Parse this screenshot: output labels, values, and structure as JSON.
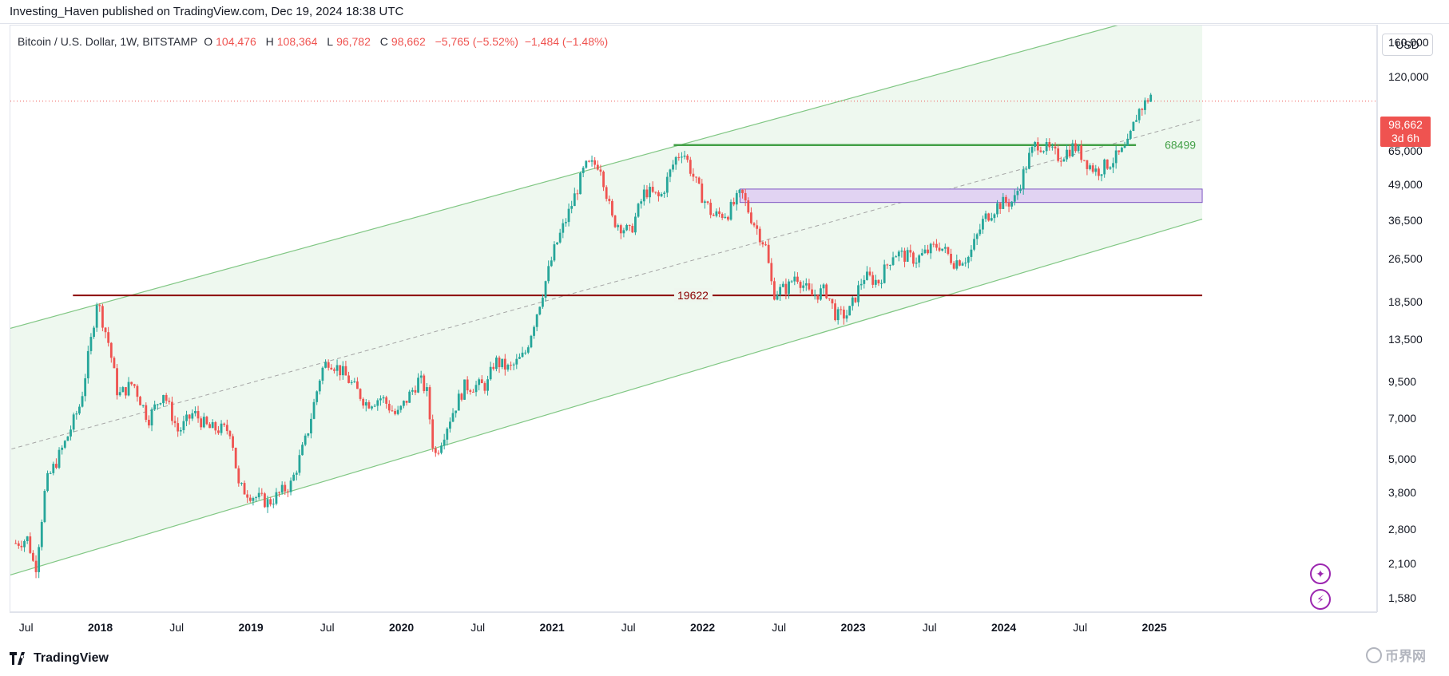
{
  "header": {
    "text": "Investing_Haven published on TradingView.com, Dec 19, 2024 18:38 UTC"
  },
  "symbol": {
    "name": "Bitcoin / U.S. Dollar, 1W, BITSTAMP",
    "o_label": "O",
    "o": "104,476",
    "h_label": "H",
    "h": "108,364",
    "l_label": "L",
    "l": "96,782",
    "c_label": "C",
    "c": "98,662",
    "change": "−5,765 (−5.52%)",
    "change2": "−1,484 (−1.48%)"
  },
  "currency": "USD",
  "last_price": {
    "value": "98,662",
    "countdown": "3d 6h"
  },
  "footer": {
    "brand": "TradingView",
    "watermark": "币界网"
  },
  "colors": {
    "up": "#26a69a",
    "down": "#ef5350",
    "channel_line": "#81c784",
    "channel_fill": "#e8f5e9",
    "support_line": "#8b0000",
    "resistance_line": "#43a047",
    "zone_fill": "#e1d3f2",
    "zone_border": "#7e57c2"
  },
  "chart_data": {
    "type": "candlestick",
    "title": "Bitcoin / U.S. Dollar, 1W, BITSTAMP",
    "scale": "log",
    "ylim": [
      1400,
      185000
    ],
    "x_ticks": [
      "Jul",
      "2018",
      "Jul",
      "2019",
      "Jul",
      "2020",
      "Jul",
      "2021",
      "Jul",
      "2022",
      "Jul",
      "2023",
      "Jul",
      "2024",
      "Jul",
      "2025"
    ],
    "x_tick_dates": [
      2017.5,
      2018.0,
      2018.5,
      2019.0,
      2019.5,
      2020.0,
      2020.5,
      2021.0,
      2021.5,
      2022.0,
      2022.5,
      2023.0,
      2023.5,
      2024.0,
      2024.5,
      2025.0
    ],
    "y_ticks": [
      "160,000",
      "120,000",
      "65,000",
      "49,000",
      "36,500",
      "26,500",
      "18,500",
      "13,500",
      "9,500",
      "7,000",
      "5,000",
      "3,800",
      "2,800",
      "2,100",
      "1,580"
    ],
    "y_tick_values": [
      160000,
      120000,
      65000,
      49000,
      36500,
      26500,
      18500,
      13500,
      9500,
      7000,
      5000,
      3800,
      2800,
      2100,
      1580
    ],
    "horizontal_lines": [
      {
        "label": "19622",
        "value": 19622,
        "start": 2017.8,
        "end": 2025.3
      },
      {
        "label": "68499",
        "value": 68499,
        "start": 2021.79,
        "end": 2024.86
      }
    ],
    "zone": {
      "low": 42500,
      "high": 47500,
      "start": 2022.23,
      "end": 2025.3
    },
    "channel": {
      "upper": [
        {
          "t": 2017.3,
          "v": 14500
        },
        {
          "t": 2025.3,
          "v": 225000
        }
      ],
      "middle": [
        {
          "t": 2017.3,
          "v": 5300
        },
        {
          "t": 2025.3,
          "v": 85000
        }
      ],
      "lower": [
        {
          "t": 2017.3,
          "v": 1860
        },
        {
          "t": 2025.3,
          "v": 37000
        }
      ]
    },
    "series": [
      {
        "name": "BTCUSD weekly close (approx.)",
        "points": [
          {
            "t": 2017.42,
            "v": 2500
          },
          {
            "t": 2017.5,
            "v": 2600
          },
          {
            "t": 2017.55,
            "v": 1980
          },
          {
            "t": 2017.62,
            "v": 4100
          },
          {
            "t": 2017.75,
            "v": 5800
          },
          {
            "t": 2017.85,
            "v": 8000
          },
          {
            "t": 2017.92,
            "v": 13500
          },
          {
            "t": 2017.96,
            "v": 19000
          },
          {
            "t": 2018.04,
            "v": 13000
          },
          {
            "t": 2018.1,
            "v": 8500
          },
          {
            "t": 2018.2,
            "v": 9500
          },
          {
            "t": 2018.3,
            "v": 7000
          },
          {
            "t": 2018.4,
            "v": 8800
          },
          {
            "t": 2018.5,
            "v": 6300
          },
          {
            "t": 2018.6,
            "v": 7400
          },
          {
            "t": 2018.7,
            "v": 6500
          },
          {
            "t": 2018.85,
            "v": 6400
          },
          {
            "t": 2018.9,
            "v": 4000
          },
          {
            "t": 2019.0,
            "v": 3700
          },
          {
            "t": 2019.1,
            "v": 3500
          },
          {
            "t": 2019.25,
            "v": 4100
          },
          {
            "t": 2019.35,
            "v": 6000
          },
          {
            "t": 2019.45,
            "v": 10500
          },
          {
            "t": 2019.5,
            "v": 11500
          },
          {
            "t": 2019.6,
            "v": 10200
          },
          {
            "t": 2019.75,
            "v": 8000
          },
          {
            "t": 2019.85,
            "v": 8400
          },
          {
            "t": 2019.95,
            "v": 7200
          },
          {
            "t": 2020.1,
            "v": 9800
          },
          {
            "t": 2020.15,
            "v": 8800
          },
          {
            "t": 2020.2,
            "v": 5100
          },
          {
            "t": 2020.3,
            "v": 7000
          },
          {
            "t": 2020.4,
            "v": 9200
          },
          {
            "t": 2020.55,
            "v": 9300
          },
          {
            "t": 2020.6,
            "v": 11400
          },
          {
            "t": 2020.7,
            "v": 10600
          },
          {
            "t": 2020.8,
            "v": 12000
          },
          {
            "t": 2020.9,
            "v": 18500
          },
          {
            "t": 2021.0,
            "v": 29000
          },
          {
            "t": 2021.1,
            "v": 40000
          },
          {
            "t": 2021.2,
            "v": 57000
          },
          {
            "t": 2021.3,
            "v": 59000
          },
          {
            "t": 2021.38,
            "v": 37000
          },
          {
            "t": 2021.5,
            "v": 33000
          },
          {
            "t": 2021.6,
            "v": 47000
          },
          {
            "t": 2021.7,
            "v": 44000
          },
          {
            "t": 2021.8,
            "v": 61000
          },
          {
            "t": 2021.85,
            "v": 66000
          },
          {
            "t": 2021.95,
            "v": 48000
          },
          {
            "t": 2022.05,
            "v": 38000
          },
          {
            "t": 2022.15,
            "v": 39000
          },
          {
            "t": 2022.24,
            "v": 46000
          },
          {
            "t": 2022.3,
            "v": 38000
          },
          {
            "t": 2022.4,
            "v": 29500
          },
          {
            "t": 2022.45,
            "v": 20000
          },
          {
            "t": 2022.55,
            "v": 21000
          },
          {
            "t": 2022.6,
            "v": 23500
          },
          {
            "t": 2022.7,
            "v": 19500
          },
          {
            "t": 2022.8,
            "v": 20500
          },
          {
            "t": 2022.87,
            "v": 16500
          },
          {
            "t": 2022.95,
            "v": 16800
          },
          {
            "t": 2023.05,
            "v": 23000
          },
          {
            "t": 2023.15,
            "v": 22000
          },
          {
            "t": 2023.25,
            "v": 28000
          },
          {
            "t": 2023.4,
            "v": 26500
          },
          {
            "t": 2023.55,
            "v": 30000
          },
          {
            "t": 2023.65,
            "v": 26000
          },
          {
            "t": 2023.75,
            "v": 27000
          },
          {
            "t": 2023.85,
            "v": 37000
          },
          {
            "t": 2023.95,
            "v": 42000
          },
          {
            "t": 2024.05,
            "v": 43000
          },
          {
            "t": 2024.15,
            "v": 62000
          },
          {
            "t": 2024.2,
            "v": 70000
          },
          {
            "t": 2024.35,
            "v": 62000
          },
          {
            "t": 2024.45,
            "v": 68000
          },
          {
            "t": 2024.55,
            "v": 58000
          },
          {
            "t": 2024.6,
            "v": 55000
          },
          {
            "t": 2024.7,
            "v": 60000
          },
          {
            "t": 2024.8,
            "v": 67000
          },
          {
            "t": 2024.87,
            "v": 90000
          },
          {
            "t": 2024.92,
            "v": 97000
          },
          {
            "t": 2024.96,
            "v": 104476
          },
          {
            "t": 2024.97,
            "v": 98662
          }
        ]
      }
    ]
  }
}
